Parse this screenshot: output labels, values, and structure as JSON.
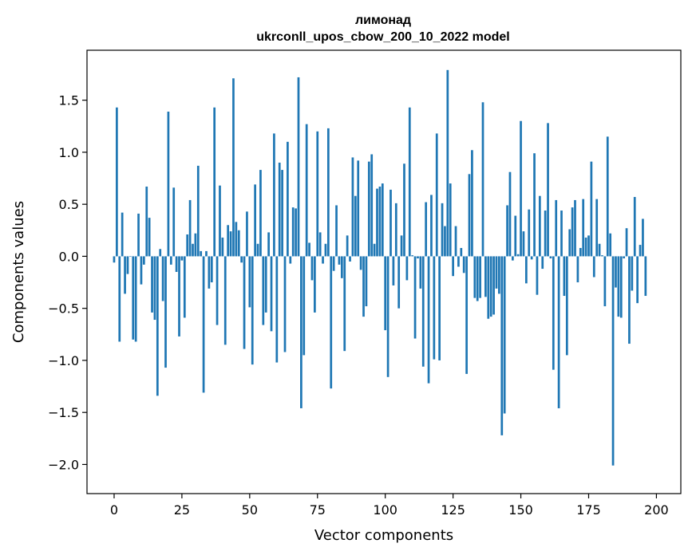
{
  "chart_data": {
    "type": "bar",
    "title_line1": "лимонад",
    "title_line2": "ukrconll_upos_cbow_200_10_2022 model",
    "xlabel": "Vector components",
    "ylabel": "Components values",
    "xlim": [
      -10,
      209
    ],
    "ylim": [
      -2.28,
      1.98
    ],
    "xticks": [
      0,
      25,
      50,
      75,
      100,
      125,
      150,
      175,
      200
    ],
    "xtick_labels": [
      "0",
      "25",
      "50",
      "75",
      "100",
      "125",
      "150",
      "175",
      "200"
    ],
    "yticks": [
      1.5,
      1.0,
      0.5,
      0.0,
      -0.5,
      -1.0,
      -1.5,
      -2.0
    ],
    "ytick_labels": [
      "1.5",
      "1.0",
      "0.5",
      "0.0",
      "−0.5",
      "−1.0",
      "−1.5",
      "−2.0"
    ],
    "bar_color": "#1f77b4",
    "grid": false,
    "values": [
      -0.06,
      1.43,
      -0.82,
      0.42,
      -0.36,
      -0.17,
      0.0,
      -0.8,
      -0.82,
      0.41,
      -0.27,
      -0.08,
      0.67,
      0.37,
      -0.54,
      -0.61,
      -1.34,
      0.07,
      -0.43,
      -1.07,
      1.39,
      -0.08,
      0.66,
      -0.15,
      -0.77,
      -0.04,
      -0.59,
      0.21,
      0.54,
      0.12,
      0.22,
      0.87,
      0.05,
      -1.31,
      0.05,
      -0.31,
      -0.25,
      1.43,
      -0.66,
      0.68,
      0.18,
      -0.85,
      0.3,
      0.24,
      1.71,
      0.33,
      0.25,
      -0.06,
      -0.89,
      0.43,
      -0.49,
      -1.04,
      0.69,
      0.12,
      0.83,
      -0.66,
      -0.54,
      0.23,
      -0.72,
      1.18,
      -1.02,
      0.9,
      0.83,
      -0.92,
      1.1,
      -0.07,
      0.47,
      0.46,
      1.72,
      -1.46,
      -0.95,
      1.27,
      0.13,
      -0.23,
      -0.54,
      1.2,
      0.23,
      -0.07,
      0.12,
      1.23,
      -1.27,
      -0.14,
      0.49,
      -0.08,
      -0.21,
      -0.91,
      0.2,
      -0.05,
      0.95,
      0.58,
      0.92,
      -0.13,
      -0.58,
      -0.48,
      0.91,
      0.98,
      0.12,
      0.65,
      0.67,
      0.7,
      -0.71,
      -1.16,
      0.64,
      -0.28,
      0.51,
      -0.5,
      0.2,
      0.89,
      -0.23,
      1.43,
      0.01,
      -0.79,
      -0.02,
      -0.31,
      -1.06,
      0.52,
      -1.22,
      0.59,
      -0.99,
      1.18,
      -1.0,
      0.51,
      0.29,
      1.79,
      0.7,
      -0.19,
      0.29,
      -0.1,
      0.08,
      -0.16,
      -1.13,
      0.79,
      1.02,
      -0.4,
      -0.43,
      -0.4,
      1.48,
      -0.39,
      -0.6,
      -0.58,
      -0.56,
      -0.31,
      -0.36,
      -1.72,
      -1.51,
      0.49,
      0.81,
      -0.04,
      0.39,
      0.02,
      1.3,
      0.24,
      -0.26,
      0.45,
      -0.03,
      0.99,
      -0.37,
      0.58,
      -0.12,
      0.44,
      1.28,
      -0.02,
      -1.09,
      0.54,
      -1.46,
      0.44,
      -0.38,
      -0.95,
      0.26,
      0.47,
      0.54,
      -0.25,
      0.08,
      0.55,
      0.18,
      0.2,
      0.91,
      -0.2,
      0.55,
      0.12,
      0.01,
      -0.48,
      1.15,
      0.22,
      -2.01,
      -0.3,
      -0.58,
      -0.59,
      -0.02,
      0.27,
      -0.84,
      -0.33,
      0.57,
      -0.45,
      0.11,
      0.36,
      -0.38
    ]
  }
}
